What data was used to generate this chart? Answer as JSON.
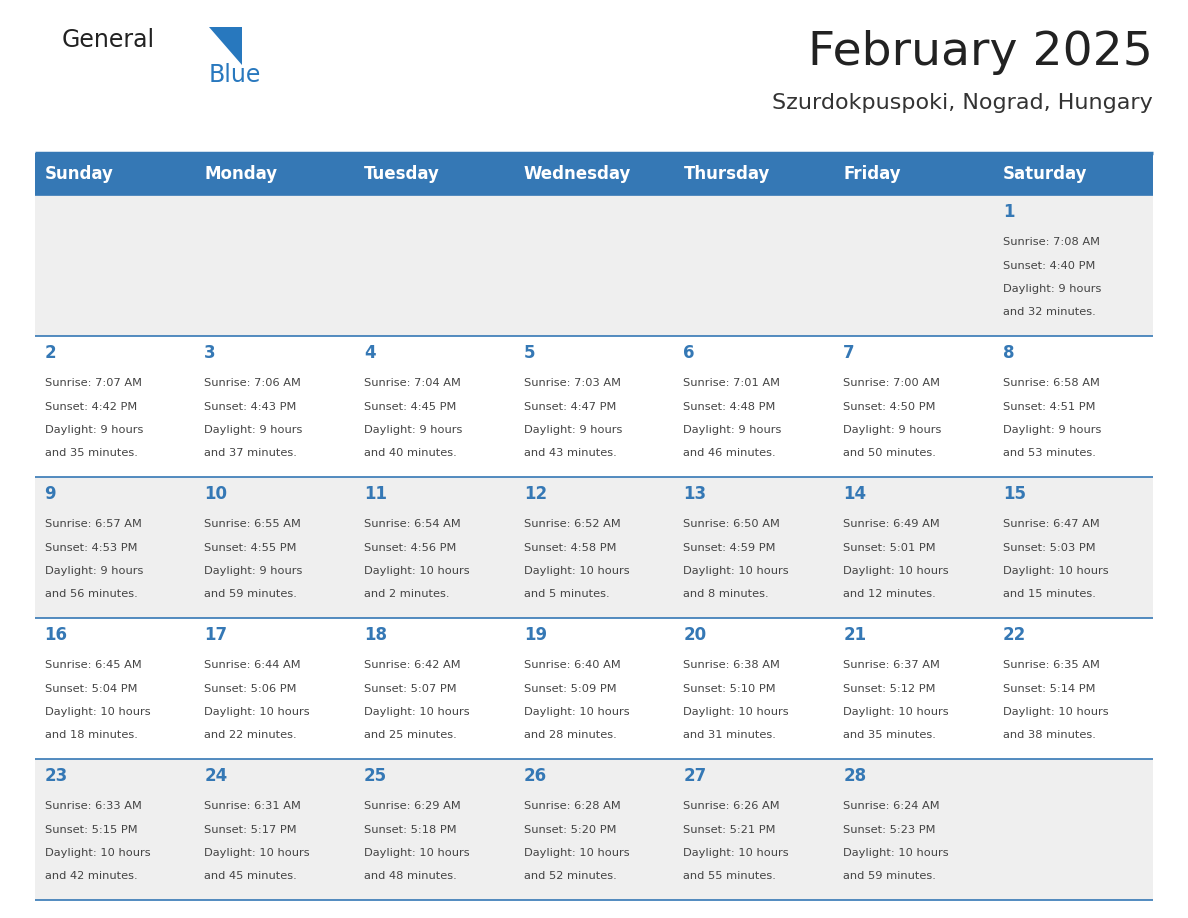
{
  "title": "February 2025",
  "subtitle": "Szurdokpuspoki, Nograd, Hungary",
  "days_of_week": [
    "Sunday",
    "Monday",
    "Tuesday",
    "Wednesday",
    "Thursday",
    "Friday",
    "Saturday"
  ],
  "header_bg": "#3578B5",
  "header_text": "#FFFFFF",
  "cell_bg_white": "#FFFFFF",
  "cell_bg_gray": "#EFEFEF",
  "day_number_color": "#3578B5",
  "text_color": "#444444",
  "border_color": "#3578B5",
  "title_color": "#222222",
  "subtitle_color": "#333333",
  "logo_black": "#222222",
  "logo_blue": "#2878BE",
  "triangle_color": "#2878BE",
  "calendar": [
    [
      null,
      null,
      null,
      null,
      null,
      null,
      {
        "day": 1,
        "sunrise": "7:08 AM",
        "sunset": "4:40 PM",
        "daylight": "9 hours and 32 minutes."
      }
    ],
    [
      {
        "day": 2,
        "sunrise": "7:07 AM",
        "sunset": "4:42 PM",
        "daylight": "9 hours and 35 minutes."
      },
      {
        "day": 3,
        "sunrise": "7:06 AM",
        "sunset": "4:43 PM",
        "daylight": "9 hours and 37 minutes."
      },
      {
        "day": 4,
        "sunrise": "7:04 AM",
        "sunset": "4:45 PM",
        "daylight": "9 hours and 40 minutes."
      },
      {
        "day": 5,
        "sunrise": "7:03 AM",
        "sunset": "4:47 PM",
        "daylight": "9 hours and 43 minutes."
      },
      {
        "day": 6,
        "sunrise": "7:01 AM",
        "sunset": "4:48 PM",
        "daylight": "9 hours and 46 minutes."
      },
      {
        "day": 7,
        "sunrise": "7:00 AM",
        "sunset": "4:50 PM",
        "daylight": "9 hours and 50 minutes."
      },
      {
        "day": 8,
        "sunrise": "6:58 AM",
        "sunset": "4:51 PM",
        "daylight": "9 hours and 53 minutes."
      }
    ],
    [
      {
        "day": 9,
        "sunrise": "6:57 AM",
        "sunset": "4:53 PM",
        "daylight": "9 hours and 56 minutes."
      },
      {
        "day": 10,
        "sunrise": "6:55 AM",
        "sunset": "4:55 PM",
        "daylight": "9 hours and 59 minutes."
      },
      {
        "day": 11,
        "sunrise": "6:54 AM",
        "sunset": "4:56 PM",
        "daylight": "10 hours and 2 minutes."
      },
      {
        "day": 12,
        "sunrise": "6:52 AM",
        "sunset": "4:58 PM",
        "daylight": "10 hours and 5 minutes."
      },
      {
        "day": 13,
        "sunrise": "6:50 AM",
        "sunset": "4:59 PM",
        "daylight": "10 hours and 8 minutes."
      },
      {
        "day": 14,
        "sunrise": "6:49 AM",
        "sunset": "5:01 PM",
        "daylight": "10 hours and 12 minutes."
      },
      {
        "day": 15,
        "sunrise": "6:47 AM",
        "sunset": "5:03 PM",
        "daylight": "10 hours and 15 minutes."
      }
    ],
    [
      {
        "day": 16,
        "sunrise": "6:45 AM",
        "sunset": "5:04 PM",
        "daylight": "10 hours and 18 minutes."
      },
      {
        "day": 17,
        "sunrise": "6:44 AM",
        "sunset": "5:06 PM",
        "daylight": "10 hours and 22 minutes."
      },
      {
        "day": 18,
        "sunrise": "6:42 AM",
        "sunset": "5:07 PM",
        "daylight": "10 hours and 25 minutes."
      },
      {
        "day": 19,
        "sunrise": "6:40 AM",
        "sunset": "5:09 PM",
        "daylight": "10 hours and 28 minutes."
      },
      {
        "day": 20,
        "sunrise": "6:38 AM",
        "sunset": "5:10 PM",
        "daylight": "10 hours and 31 minutes."
      },
      {
        "day": 21,
        "sunrise": "6:37 AM",
        "sunset": "5:12 PM",
        "daylight": "10 hours and 35 minutes."
      },
      {
        "day": 22,
        "sunrise": "6:35 AM",
        "sunset": "5:14 PM",
        "daylight": "10 hours and 38 minutes."
      }
    ],
    [
      {
        "day": 23,
        "sunrise": "6:33 AM",
        "sunset": "5:15 PM",
        "daylight": "10 hours and 42 minutes."
      },
      {
        "day": 24,
        "sunrise": "6:31 AM",
        "sunset": "5:17 PM",
        "daylight": "10 hours and 45 minutes."
      },
      {
        "day": 25,
        "sunrise": "6:29 AM",
        "sunset": "5:18 PM",
        "daylight": "10 hours and 48 minutes."
      },
      {
        "day": 26,
        "sunrise": "6:28 AM",
        "sunset": "5:20 PM",
        "daylight": "10 hours and 52 minutes."
      },
      {
        "day": 27,
        "sunrise": "6:26 AM",
        "sunset": "5:21 PM",
        "daylight": "10 hours and 55 minutes."
      },
      {
        "day": 28,
        "sunrise": "6:24 AM",
        "sunset": "5:23 PM",
        "daylight": "10 hours and 59 minutes."
      },
      null
    ]
  ],
  "figsize": [
    11.88,
    9.18
  ],
  "dpi": 100
}
